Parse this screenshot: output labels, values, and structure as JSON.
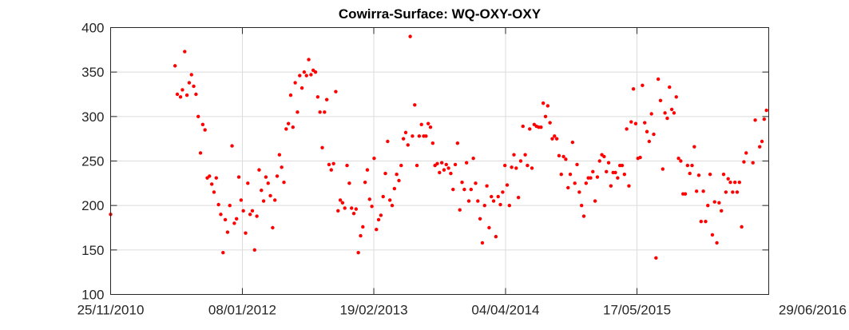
{
  "chart_data": {
    "type": "scatter",
    "title": "Cowirra-Surface: WQ-OXY-OXY",
    "xlabel": "",
    "ylabel": "",
    "x_axis": "date",
    "xlim": [
      "2010-11-25",
      "2016-06-29"
    ],
    "ylim": [
      100,
      400
    ],
    "y_ticks": [
      100,
      150,
      200,
      250,
      300,
      350,
      400
    ],
    "x_tick_labels": [
      "25/11/2010",
      "08/01/2012",
      "19/02/2013",
      "04/04/2014",
      "17/05/2015",
      "29/06/2016"
    ],
    "x_tick_dates": [
      "2010-11-25",
      "2012-01-08",
      "2013-02-19",
      "2014-04-04",
      "2015-05-17",
      "2016-06-29"
    ],
    "grid": true,
    "marker_color": "#ff0000",
    "points": [
      [
        "2010-11-25",
        190
      ],
      [
        "2011-06-13",
        357
      ],
      [
        "2011-06-20",
        325
      ],
      [
        "2011-06-30",
        322
      ],
      [
        "2011-07-06",
        330
      ],
      [
        "2011-07-13",
        373
      ],
      [
        "2011-07-20",
        324
      ],
      [
        "2011-07-27",
        338
      ],
      [
        "2011-08-03",
        347
      ],
      [
        "2011-08-10",
        334
      ],
      [
        "2011-08-17",
        325
      ],
      [
        "2011-08-24",
        300
      ],
      [
        "2011-08-31",
        259
      ],
      [
        "2011-09-07",
        291
      ],
      [
        "2011-09-14",
        285
      ],
      [
        "2011-09-21",
        231
      ],
      [
        "2011-09-28",
        233
      ],
      [
        "2011-10-05",
        224
      ],
      [
        "2011-10-12",
        215
      ],
      [
        "2011-10-19",
        231
      ],
      [
        "2011-10-26",
        201
      ],
      [
        "2011-11-02",
        190
      ],
      [
        "2011-11-09",
        147
      ],
      [
        "2011-11-16",
        184
      ],
      [
        "2011-11-23",
        170
      ],
      [
        "2011-11-30",
        200
      ],
      [
        "2011-12-07",
        267
      ],
      [
        "2011-12-14",
        180
      ],
      [
        "2011-12-21",
        185
      ],
      [
        "2011-12-28",
        232
      ],
      [
        "2012-01-04",
        206
      ],
      [
        "2012-01-11",
        194
      ],
      [
        "2012-01-18",
        169
      ],
      [
        "2012-01-25",
        225
      ],
      [
        "2012-02-01",
        190
      ],
      [
        "2012-02-08",
        194
      ],
      [
        "2012-02-15",
        150
      ],
      [
        "2012-02-22",
        188
      ],
      [
        "2012-02-29",
        240
      ],
      [
        "2012-03-07",
        217
      ],
      [
        "2012-03-14",
        205
      ],
      [
        "2012-03-21",
        232
      ],
      [
        "2012-03-28",
        225
      ],
      [
        "2012-04-04",
        211
      ],
      [
        "2012-04-11",
        175
      ],
      [
        "2012-04-18",
        206
      ],
      [
        "2012-04-25",
        233
      ],
      [
        "2012-05-02",
        257
      ],
      [
        "2012-05-09",
        243
      ],
      [
        "2012-05-16",
        226
      ],
      [
        "2012-05-23",
        286
      ],
      [
        "2012-05-30",
        292
      ],
      [
        "2012-06-06",
        324
      ],
      [
        "2012-06-13",
        288
      ],
      [
        "2012-06-20",
        338
      ],
      [
        "2012-06-27",
        305
      ],
      [
        "2012-07-04",
        346
      ],
      [
        "2012-07-11",
        332
      ],
      [
        "2012-07-18",
        350
      ],
      [
        "2012-07-25",
        346
      ],
      [
        "2012-08-01",
        364
      ],
      [
        "2012-08-08",
        347
      ],
      [
        "2012-08-15",
        352
      ],
      [
        "2012-08-22",
        350
      ],
      [
        "2012-08-29",
        322
      ],
      [
        "2012-09-05",
        305
      ],
      [
        "2012-09-12",
        265
      ],
      [
        "2012-09-19",
        305
      ],
      [
        "2012-09-26",
        319
      ],
      [
        "2012-10-03",
        246
      ],
      [
        "2012-10-10",
        240
      ],
      [
        "2012-10-17",
        247
      ],
      [
        "2012-10-24",
        328
      ],
      [
        "2012-10-31",
        194
      ],
      [
        "2012-11-07",
        206
      ],
      [
        "2012-11-14",
        203
      ],
      [
        "2012-11-21",
        197
      ],
      [
        "2012-11-28",
        245
      ],
      [
        "2012-12-05",
        225
      ],
      [
        "2012-12-12",
        197
      ],
      [
        "2012-12-19",
        191
      ],
      [
        "2012-12-26",
        196
      ],
      [
        "2013-01-02",
        147
      ],
      [
        "2013-01-09",
        166
      ],
      [
        "2013-01-16",
        176
      ],
      [
        "2013-01-23",
        226
      ],
      [
        "2013-01-30",
        240
      ],
      [
        "2013-02-06",
        207
      ],
      [
        "2013-02-13",
        199
      ],
      [
        "2013-02-20",
        253
      ],
      [
        "2013-02-27",
        173
      ],
      [
        "2013-03-06",
        184
      ],
      [
        "2013-03-13",
        189
      ],
      [
        "2013-03-20",
        210
      ],
      [
        "2013-03-27",
        236
      ],
      [
        "2013-04-03",
        272
      ],
      [
        "2013-04-10",
        206
      ],
      [
        "2013-04-17",
        200
      ],
      [
        "2013-04-24",
        219
      ],
      [
        "2013-05-01",
        235
      ],
      [
        "2013-05-08",
        228
      ],
      [
        "2013-05-15",
        245
      ],
      [
        "2013-05-22",
        275
      ],
      [
        "2013-05-29",
        282
      ],
      [
        "2013-06-05",
        268
      ],
      [
        "2013-06-12",
        390
      ],
      [
        "2013-06-19",
        278
      ],
      [
        "2013-06-26",
        313
      ],
      [
        "2013-07-03",
        245
      ],
      [
        "2013-07-10",
        278
      ],
      [
        "2013-07-17",
        291
      ],
      [
        "2013-07-24",
        278
      ],
      [
        "2013-07-31",
        278
      ],
      [
        "2013-08-07",
        292
      ],
      [
        "2013-08-14",
        288
      ],
      [
        "2013-08-21",
        270
      ],
      [
        "2013-08-28",
        245
      ],
      [
        "2013-09-04",
        247
      ],
      [
        "2013-09-11",
        237
      ],
      [
        "2013-09-18",
        248
      ],
      [
        "2013-09-25",
        240
      ],
      [
        "2013-10-02",
        246
      ],
      [
        "2013-10-09",
        242
      ],
      [
        "2013-10-16",
        236
      ],
      [
        "2013-10-23",
        218
      ],
      [
        "2013-10-30",
        246
      ],
      [
        "2013-11-06",
        270
      ],
      [
        "2013-11-13",
        195
      ],
      [
        "2013-11-20",
        226
      ],
      [
        "2013-11-27",
        218
      ],
      [
        "2013-12-04",
        248
      ],
      [
        "2013-12-11",
        205
      ],
      [
        "2013-12-18",
        218
      ],
      [
        "2013-12-25",
        253
      ],
      [
        "2014-01-01",
        225
      ],
      [
        "2014-01-08",
        205
      ],
      [
        "2014-01-15",
        185
      ],
      [
        "2014-01-22",
        158
      ],
      [
        "2014-01-29",
        200
      ],
      [
        "2014-02-05",
        222
      ],
      [
        "2014-02-12",
        175
      ],
      [
        "2014-02-19",
        210
      ],
      [
        "2014-02-26",
        205
      ],
      [
        "2014-03-05",
        165
      ],
      [
        "2014-03-12",
        210
      ],
      [
        "2014-03-19",
        201
      ],
      [
        "2014-03-26",
        215
      ],
      [
        "2014-04-02",
        245
      ],
      [
        "2014-04-09",
        223
      ],
      [
        "2014-04-16",
        200
      ],
      [
        "2014-04-23",
        243
      ],
      [
        "2014-04-30",
        257
      ],
      [
        "2014-05-07",
        242
      ],
      [
        "2014-05-14",
        209
      ],
      [
        "2014-05-21",
        250
      ],
      [
        "2014-05-28",
        289
      ],
      [
        "2014-06-04",
        257
      ],
      [
        "2014-06-11",
        245
      ],
      [
        "2014-06-18",
        286
      ],
      [
        "2014-06-25",
        242
      ],
      [
        "2014-07-02",
        291
      ],
      [
        "2014-07-09",
        289
      ],
      [
        "2014-07-16",
        288
      ],
      [
        "2014-07-23",
        288
      ],
      [
        "2014-07-30",
        315
      ],
      [
        "2014-08-06",
        300
      ],
      [
        "2014-08-13",
        312
      ],
      [
        "2014-08-20",
        293
      ],
      [
        "2014-08-27",
        275
      ],
      [
        "2014-09-03",
        278
      ],
      [
        "2014-09-10",
        275
      ],
      [
        "2014-09-17",
        256
      ],
      [
        "2014-09-24",
        235
      ],
      [
        "2014-10-01",
        255
      ],
      [
        "2014-10-08",
        252
      ],
      [
        "2014-10-15",
        220
      ],
      [
        "2014-10-22",
        235
      ],
      [
        "2014-10-29",
        271
      ],
      [
        "2014-11-05",
        225
      ],
      [
        "2014-11-12",
        246
      ],
      [
        "2014-11-19",
        215
      ],
      [
        "2014-11-26",
        200
      ],
      [
        "2014-12-03",
        188
      ],
      [
        "2014-12-10",
        225
      ],
      [
        "2014-12-17",
        231
      ],
      [
        "2014-12-24",
        231
      ],
      [
        "2014-12-31",
        238
      ],
      [
        "2015-01-07",
        205
      ],
      [
        "2015-01-14",
        232
      ],
      [
        "2015-01-21",
        250
      ],
      [
        "2015-01-28",
        257
      ],
      [
        "2015-02-04",
        255
      ],
      [
        "2015-02-11",
        238
      ],
      [
        "2015-02-18",
        248
      ],
      [
        "2015-02-25",
        222
      ],
      [
        "2015-03-04",
        237
      ],
      [
        "2015-03-11",
        237
      ],
      [
        "2015-03-18",
        231
      ],
      [
        "2015-03-25",
        245
      ],
      [
        "2015-04-01",
        245
      ],
      [
        "2015-04-08",
        235
      ],
      [
        "2015-04-15",
        286
      ],
      [
        "2015-04-22",
        222
      ],
      [
        "2015-04-29",
        294
      ],
      [
        "2015-05-06",
        331
      ],
      [
        "2015-05-13",
        292
      ],
      [
        "2015-05-20",
        253
      ],
      [
        "2015-05-27",
        254
      ],
      [
        "2015-06-03",
        335
      ],
      [
        "2015-06-10",
        293
      ],
      [
        "2015-06-17",
        283
      ],
      [
        "2015-06-24",
        272
      ],
      [
        "2015-07-01",
        303
      ],
      [
        "2015-07-08",
        280
      ],
      [
        "2015-07-15",
        141
      ],
      [
        "2015-07-22",
        342
      ],
      [
        "2015-07-29",
        318
      ],
      [
        "2015-08-05",
        241
      ],
      [
        "2015-08-12",
        304
      ],
      [
        "2015-08-19",
        298
      ],
      [
        "2015-08-26",
        333
      ],
      [
        "2015-09-02",
        308
      ],
      [
        "2015-09-09",
        304
      ],
      [
        "2015-09-16",
        322
      ],
      [
        "2015-09-23",
        253
      ],
      [
        "2015-09-30",
        250
      ],
      [
        "2015-10-07",
        213
      ],
      [
        "2015-10-14",
        213
      ],
      [
        "2015-10-21",
        245
      ],
      [
        "2015-10-28",
        236
      ],
      [
        "2015-11-04",
        245
      ],
      [
        "2015-11-11",
        266
      ],
      [
        "2015-11-18",
        216
      ],
      [
        "2015-11-25",
        234
      ],
      [
        "2015-12-02",
        182
      ],
      [
        "2015-12-09",
        216
      ],
      [
        "2015-12-16",
        182
      ],
      [
        "2015-12-23",
        200
      ],
      [
        "2015-12-30",
        235
      ],
      [
        "2016-01-06",
        167
      ],
      [
        "2016-01-13",
        204
      ],
      [
        "2016-01-20",
        158
      ],
      [
        "2016-01-27",
        203
      ],
      [
        "2016-02-03",
        194
      ],
      [
        "2016-02-10",
        235
      ],
      [
        "2016-02-17",
        215
      ],
      [
        "2016-02-24",
        230
      ],
      [
        "2016-03-02",
        226
      ],
      [
        "2016-03-09",
        215
      ],
      [
        "2016-03-16",
        226
      ],
      [
        "2016-03-23",
        215
      ],
      [
        "2016-03-30",
        226
      ],
      [
        "2016-04-06",
        176
      ],
      [
        "2016-04-13",
        249
      ],
      [
        "2016-04-20",
        259
      ],
      [
        "2016-05-11",
        248
      ],
      [
        "2016-05-18",
        296
      ],
      [
        "2016-06-01",
        266
      ],
      [
        "2016-06-08",
        272
      ],
      [
        "2016-06-15",
        297
      ],
      [
        "2016-06-22",
        307
      ]
    ]
  }
}
